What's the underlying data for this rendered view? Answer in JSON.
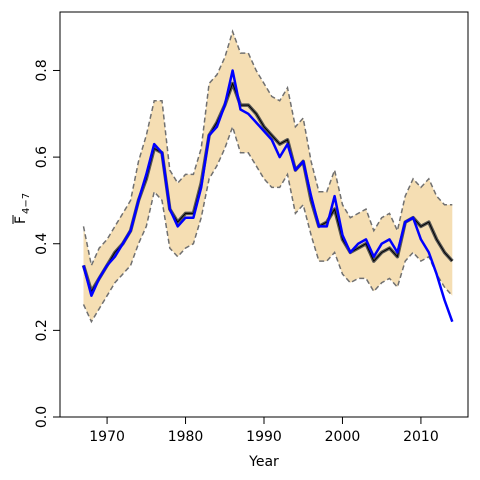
{
  "chart_data": {
    "type": "line",
    "xlabel": "Year",
    "ylabel": "F",
    "ylabel_subscript": "4−7",
    "xlim": [
      1964,
      2016
    ],
    "ylim": [
      0,
      0.935
    ],
    "xticks": [
      "1970",
      "1980",
      "1990",
      "2000",
      "2010"
    ],
    "yticks": [
      "0.0",
      "0.2",
      "0.4",
      "0.6",
      "0.8"
    ],
    "grid": false,
    "colors": {
      "band": "#f5deb3",
      "band_edge": "#707070",
      "median_outer": "#555555",
      "median_inner": "#000000",
      "observed": "#0000ff"
    },
    "x": [
      1967,
      1968,
      1969,
      1970,
      1971,
      1972,
      1973,
      1974,
      1975,
      1976,
      1977,
      1978,
      1979,
      1980,
      1981,
      1982,
      1983,
      1984,
      1985,
      1986,
      1987,
      1988,
      1989,
      1990,
      1991,
      1992,
      1993,
      1994,
      1995,
      1996,
      1997,
      1998,
      1999,
      2000,
      2001,
      2002,
      2003,
      2004,
      2005,
      2006,
      2007,
      2008,
      2009,
      2010,
      2011,
      2012,
      2013,
      2014
    ],
    "series": [
      {
        "role": "upper",
        "values": [
          0.44,
          0.35,
          0.39,
          0.41,
          0.44,
          0.47,
          0.5,
          0.59,
          0.65,
          0.73,
          0.73,
          0.57,
          0.54,
          0.56,
          0.56,
          0.62,
          0.77,
          0.79,
          0.83,
          0.89,
          0.84,
          0.84,
          0.8,
          0.77,
          0.74,
          0.73,
          0.76,
          0.67,
          0.69,
          0.59,
          0.52,
          0.52,
          0.57,
          0.49,
          0.46,
          0.47,
          0.48,
          0.43,
          0.46,
          0.47,
          0.43,
          0.51,
          0.55,
          0.53,
          0.55,
          0.51,
          0.49,
          0.49
        ]
      },
      {
        "role": "lower",
        "values": [
          0.26,
          0.22,
          0.25,
          0.28,
          0.31,
          0.33,
          0.35,
          0.4,
          0.44,
          0.52,
          0.5,
          0.39,
          0.37,
          0.39,
          0.4,
          0.46,
          0.55,
          0.58,
          0.62,
          0.67,
          0.61,
          0.61,
          0.58,
          0.55,
          0.53,
          0.53,
          0.56,
          0.47,
          0.49,
          0.42,
          0.36,
          0.36,
          0.38,
          0.33,
          0.31,
          0.32,
          0.32,
          0.29,
          0.31,
          0.32,
          0.3,
          0.36,
          0.38,
          0.36,
          0.37,
          0.33,
          0.3,
          0.28
        ]
      },
      {
        "role": "median",
        "values": [
          0.35,
          0.29,
          0.32,
          0.35,
          0.38,
          0.4,
          0.43,
          0.5,
          0.55,
          0.62,
          0.61,
          0.48,
          0.45,
          0.47,
          0.47,
          0.54,
          0.65,
          0.68,
          0.72,
          0.77,
          0.72,
          0.72,
          0.7,
          0.67,
          0.65,
          0.63,
          0.64,
          0.57,
          0.59,
          0.5,
          0.44,
          0.45,
          0.48,
          0.41,
          0.38,
          0.39,
          0.4,
          0.36,
          0.38,
          0.39,
          0.37,
          0.45,
          0.46,
          0.44,
          0.45,
          0.41,
          0.38,
          0.36
        ]
      },
      {
        "role": "observed",
        "values": [
          0.35,
          0.28,
          0.32,
          0.35,
          0.37,
          0.4,
          0.43,
          0.5,
          0.56,
          0.63,
          0.61,
          0.48,
          0.44,
          0.46,
          0.46,
          0.53,
          0.65,
          0.67,
          0.72,
          0.8,
          0.71,
          0.7,
          0.68,
          0.66,
          0.64,
          0.6,
          0.63,
          0.57,
          0.59,
          0.51,
          0.44,
          0.44,
          0.51,
          0.42,
          0.38,
          0.4,
          0.41,
          0.37,
          0.4,
          0.41,
          0.38,
          0.45,
          0.46,
          0.41,
          0.38,
          0.33,
          0.27,
          0.22
        ]
      }
    ]
  }
}
